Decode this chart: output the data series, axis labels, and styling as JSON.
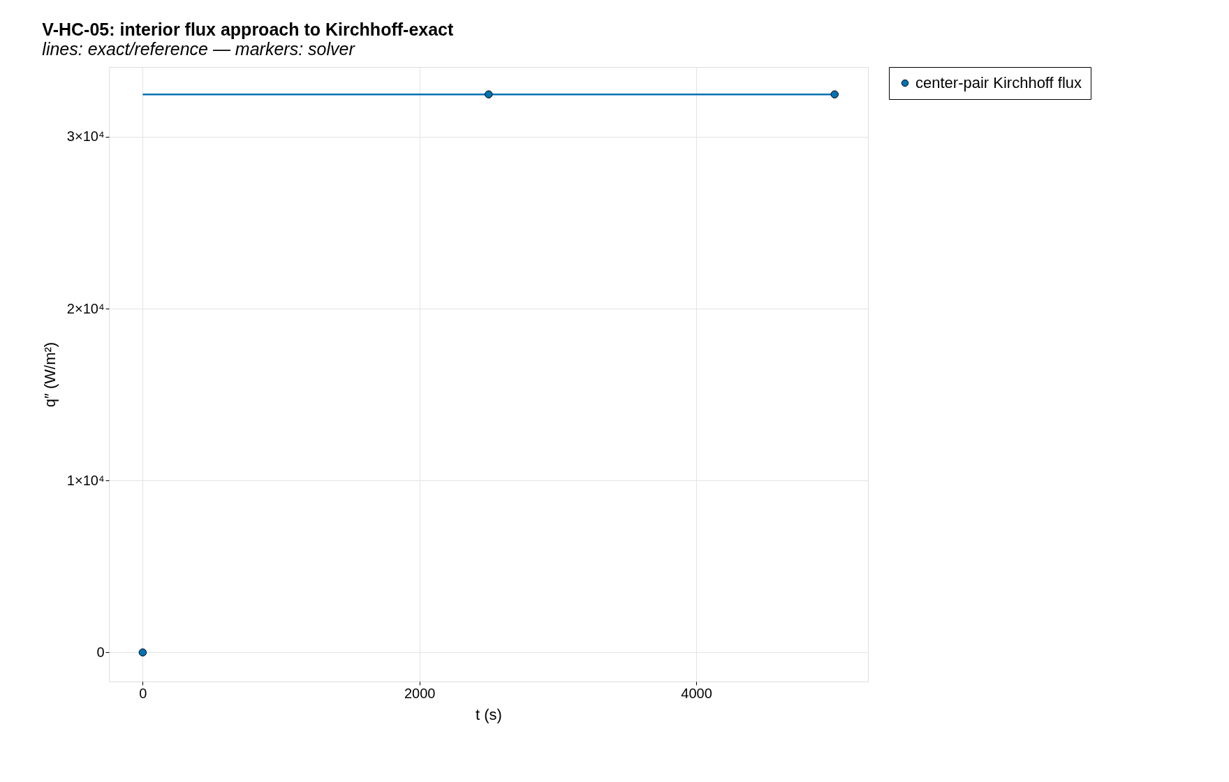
{
  "chart_data": {
    "type": "line",
    "title": "V-HC-05: interior flux approach to Kirchhoff-exact",
    "subtitle": "lines: exact/reference — markers: solver",
    "xlabel": "t (s)",
    "ylabel": "q″ (W/m²)",
    "series": [
      {
        "type": "line",
        "color": "#0072b2",
        "x": [
          0,
          5000
        ],
        "values": [
          32470,
          32470
        ],
        "marker": "none",
        "line_style": "solid"
      },
      {
        "type": "scatter",
        "name": "center-pair Kirchhoff flux",
        "color": "#0072b2",
        "x": [
          0,
          2500,
          5000
        ],
        "values": [
          0,
          32470,
          32470
        ],
        "marker": "circle"
      }
    ],
    "xlim": [
      -244,
      5241
    ],
    "ylim": [
      -1690,
      34060
    ],
    "xticks": [
      0,
      2000,
      4000
    ],
    "yticks": [
      0,
      {
        "value": 10000,
        "label": "1×10⁴"
      },
      {
        "value": 20000,
        "label": "2×10⁴"
      },
      {
        "value": 30000,
        "label": "3×10⁴"
      }
    ],
    "grid": true,
    "legend": "right"
  }
}
